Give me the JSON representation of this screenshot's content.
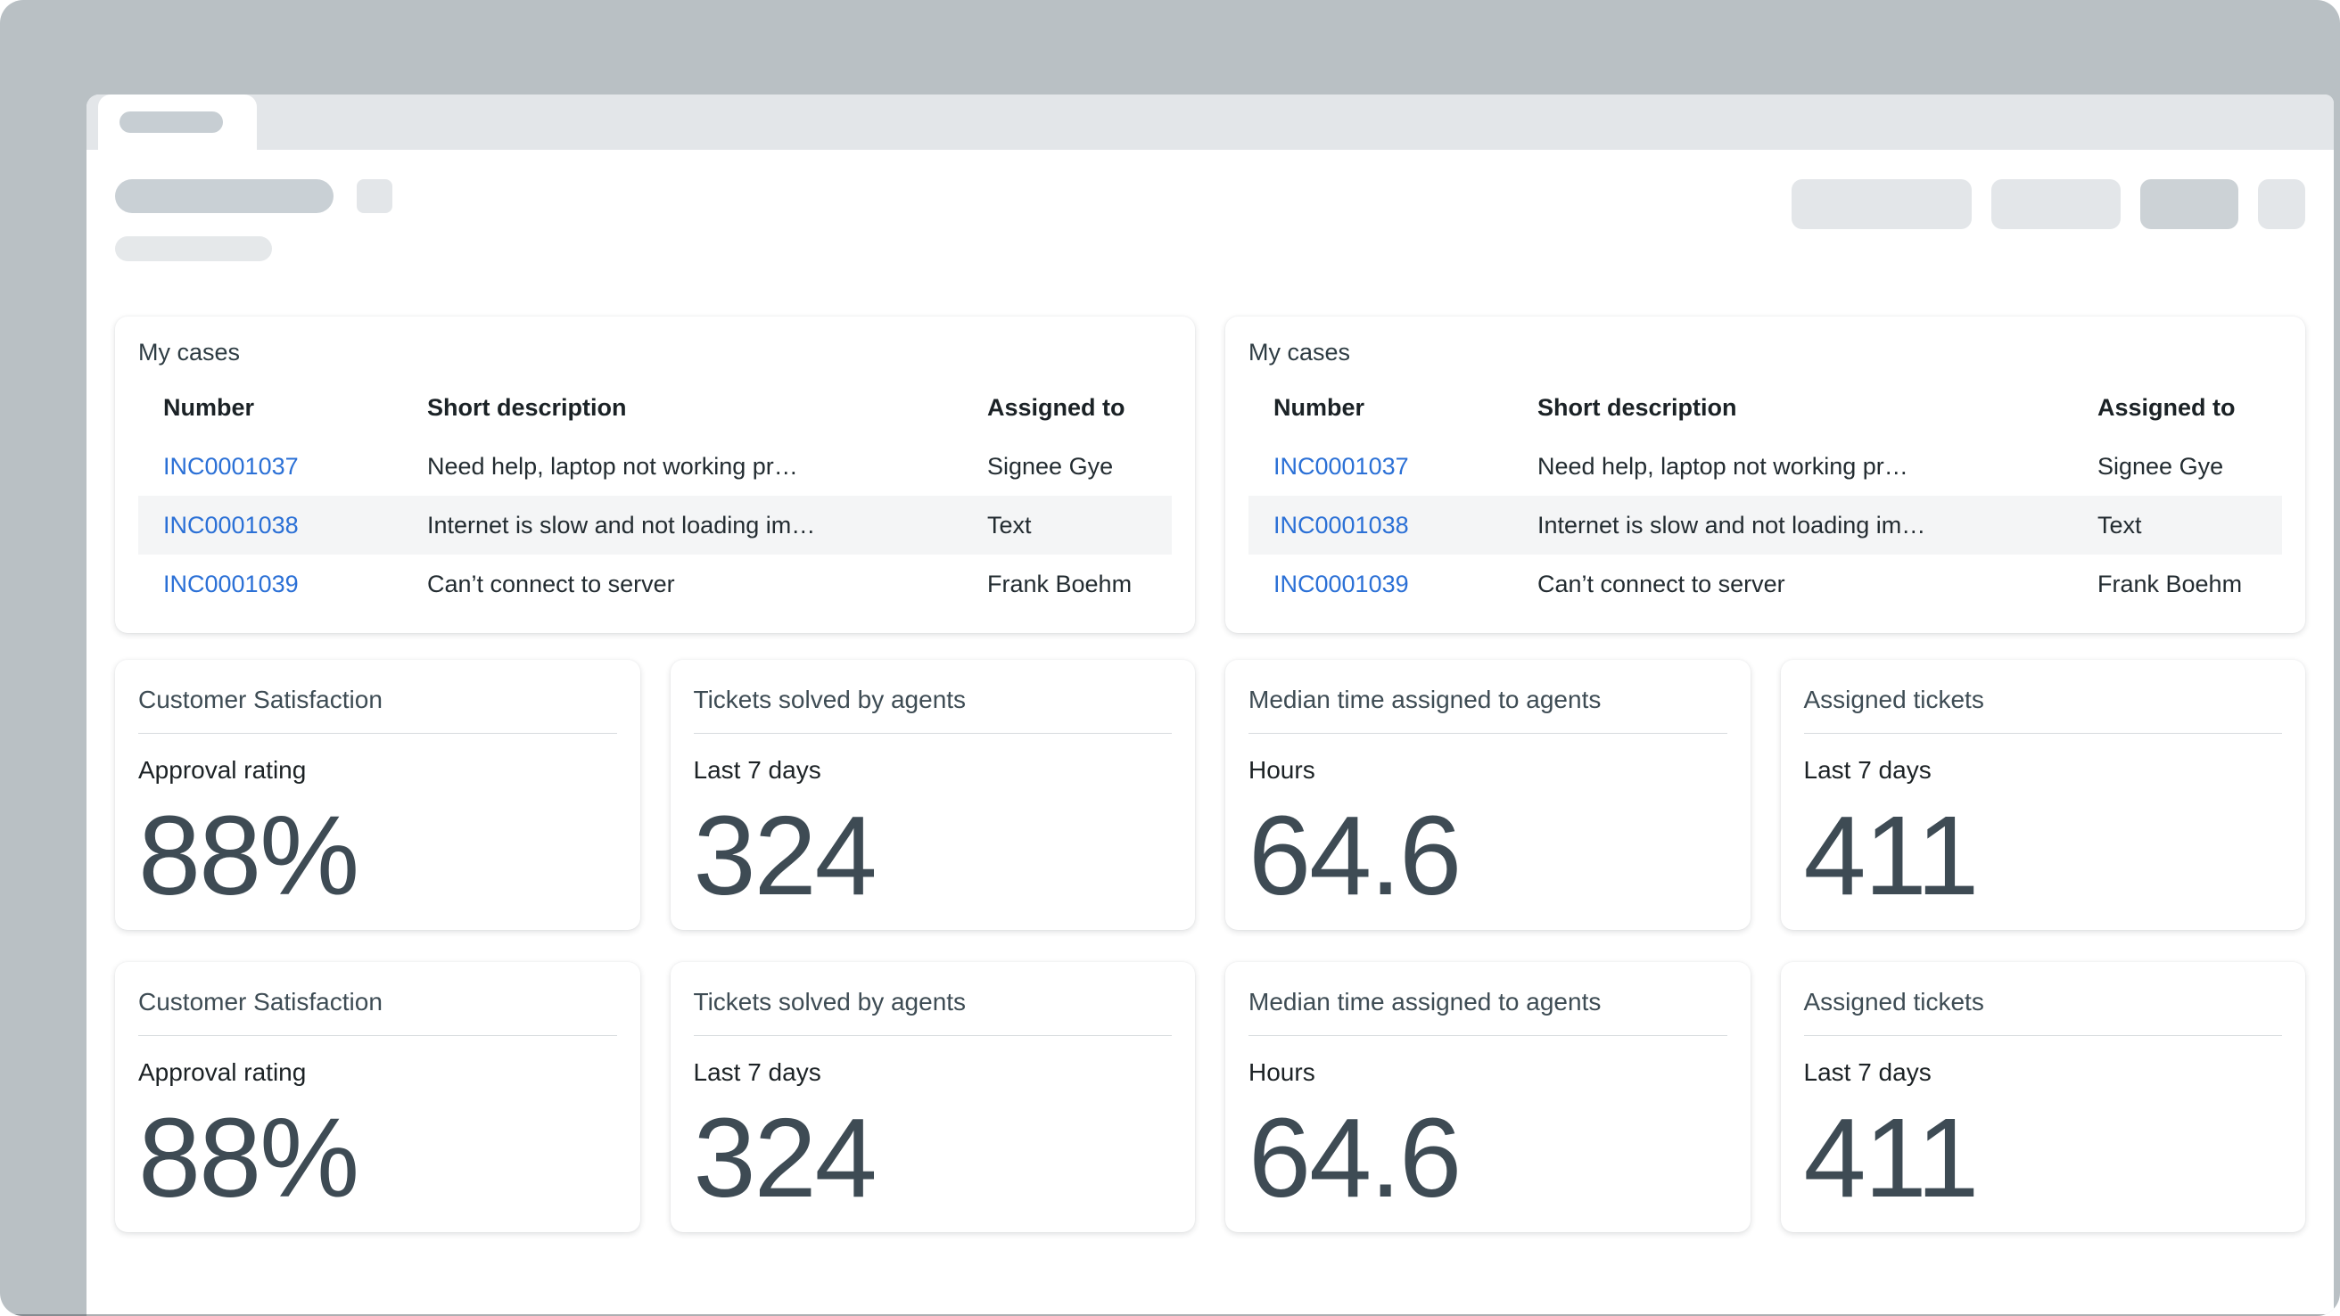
{
  "colors": {
    "canvas_background": "#b9c0c4",
    "tabstrip_background": "#e3e6e9",
    "placeholder_dark": "#c9d0d5",
    "placeholder_light": "#e3e6e9",
    "link_blue": "#2b70d6",
    "row_stripe": "#f4f5f6",
    "kpi_text_slate": "#3e4c54",
    "body_text": "#232c31"
  },
  "tables": [
    {
      "title": "My cases",
      "columns": [
        "Number",
        "Short description",
        "Assigned to"
      ],
      "rows": [
        {
          "number": "INC0001037",
          "description": "Need help, laptop not working pr…",
          "assigned": "Signee Gye"
        },
        {
          "number": "INC0001038",
          "description": "Internet is slow and not loading im…",
          "assigned": "Text"
        },
        {
          "number": "INC0001039",
          "description": "Can’t connect to server",
          "assigned": "Frank Boehm"
        }
      ]
    },
    {
      "title": "My cases",
      "columns": [
        "Number",
        "Short description",
        "Assigned to"
      ],
      "rows": [
        {
          "number": "INC0001037",
          "description": "Need help, laptop not working pr…",
          "assigned": "Signee Gye"
        },
        {
          "number": "INC0001038",
          "description": "Internet is slow and not loading im…",
          "assigned": "Text"
        },
        {
          "number": "INC0001039",
          "description": "Can’t connect to server",
          "assigned": "Frank Boehm"
        }
      ]
    }
  ],
  "kpi_rows": [
    [
      {
        "title": "Customer Satisfaction",
        "subtitle": "Approval rating",
        "value": "88%"
      },
      {
        "title": "Tickets solved by agents",
        "subtitle": "Last 7 days",
        "value": "324"
      },
      {
        "title": "Median time assigned to agents",
        "subtitle": "Hours",
        "value": "64.6"
      },
      {
        "title": "Assigned tickets",
        "subtitle": "Last 7 days",
        "value": "411"
      }
    ],
    [
      {
        "title": "Customer Satisfaction",
        "subtitle": "Approval rating",
        "value": "88%"
      },
      {
        "title": "Tickets solved by agents",
        "subtitle": "Last 7 days",
        "value": "324"
      },
      {
        "title": "Median time assigned to agents",
        "subtitle": "Hours",
        "value": "64.6"
      },
      {
        "title": "Assigned tickets",
        "subtitle": "Last 7 days",
        "value": "411"
      }
    ]
  ]
}
